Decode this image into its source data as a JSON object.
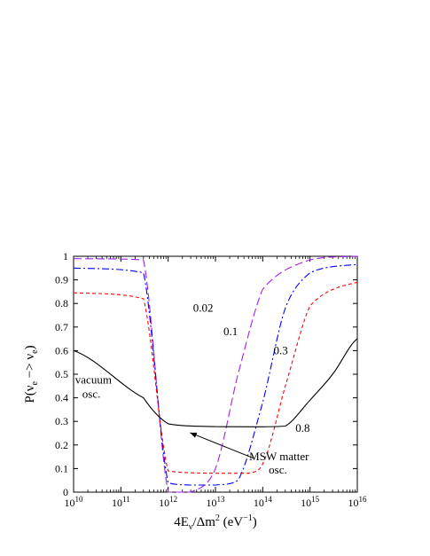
{
  "chart_data": {
    "type": "line",
    "title": "",
    "xlabel": {
      "prefix": "4E",
      "sub": "ν",
      "mid": "/Δm",
      "sup": "2",
      "unit_open": " (eV",
      "unit_sup": "−1",
      "unit_close": ")"
    },
    "ylabel": {
      "p": "P(ν",
      "sub1": "e",
      "arrow": " −> ν",
      "sub2": "e",
      "close": ")"
    },
    "x_scale": "log",
    "xlim": [
      10000000000.0,
      1e+16
    ],
    "ylim": [
      0,
      1
    ],
    "grid": false,
    "x_ticks": [
      {
        "base": "10",
        "exp": "10",
        "value": 10000000000.0
      },
      {
        "base": "10",
        "exp": "11",
        "value": 100000000000.0
      },
      {
        "base": "10",
        "exp": "12",
        "value": 1000000000000.0
      },
      {
        "base": "10",
        "exp": "13",
        "value": 10000000000000.0
      },
      {
        "base": "10",
        "exp": "14",
        "value": 100000000000000.0
      },
      {
        "base": "10",
        "exp": "15",
        "value": 1000000000000000.0
      },
      {
        "base": "10",
        "exp": "16",
        "value": 1e+16
      }
    ],
    "y_ticks": [
      "0",
      "0.1",
      "0.2",
      "0.3",
      "0.4",
      "0.5",
      "0.6",
      "0.7",
      "0.8",
      "0.9",
      "1"
    ],
    "series": [
      {
        "name": "0.02",
        "color": "#a020f0",
        "dash": "long-dash",
        "points": [
          [
            10000000000.0,
            0.99
          ],
          [
            300000000000.0,
            0.985
          ],
          [
            1000000000000.0,
            0.0
          ],
          [
            3000000000000.0,
            0.0
          ],
          [
            10000000000000.0,
            0.1
          ],
          [
            30000000000000.0,
            0.5
          ],
          [
            100000000000000.0,
            0.86
          ],
          [
            1000000000000000.0,
            0.985
          ],
          [
            1e+16,
            1.0
          ]
        ]
      },
      {
        "name": "0.1",
        "color": "#0000ff",
        "dash": "dash-dot",
        "points": [
          [
            10000000000.0,
            0.95
          ],
          [
            300000000000.0,
            0.93
          ],
          [
            1000000000000.0,
            0.04
          ],
          [
            3000000000000.0,
            0.03
          ],
          [
            10000000000000.0,
            0.03
          ],
          [
            30000000000000.0,
            0.05
          ],
          [
            100000000000000.0,
            0.38
          ],
          [
            300000000000000.0,
            0.78
          ],
          [
            1000000000000000.0,
            0.93
          ],
          [
            1e+16,
            0.965
          ]
        ]
      },
      {
        "name": "0.3",
        "color": "#ff0000",
        "dash": "short-dash",
        "points": [
          [
            10000000000.0,
            0.845
          ],
          [
            300000000000.0,
            0.82
          ],
          [
            1000000000000.0,
            0.09
          ],
          [
            10000000000000.0,
            0.08
          ],
          [
            50000000000000.0,
            0.08
          ],
          [
            100000000000000.0,
            0.12
          ],
          [
            300000000000000.0,
            0.45
          ],
          [
            1000000000000000.0,
            0.79
          ],
          [
            1e+16,
            0.89
          ]
        ]
      },
      {
        "name": "0.8",
        "color": "#000000",
        "dash": "solid",
        "points": [
          [
            10000000000.0,
            0.6
          ],
          [
            300000000000.0,
            0.4
          ],
          [
            1000000000000.0,
            0.29
          ],
          [
            10000000000000.0,
            0.278
          ],
          [
            100000000000000.0,
            0.277
          ],
          [
            300000000000000.0,
            0.28
          ],
          [
            1000000000000000.0,
            0.39
          ],
          [
            3000000000000000.0,
            0.5
          ],
          [
            1e+16,
            0.65
          ]
        ]
      }
    ],
    "series_labels": [
      {
        "text": "0.02",
        "x": 5500000000000.0,
        "y": 0.765
      },
      {
        "text": "0.1",
        "x": 21000000000000.0,
        "y": 0.665
      },
      {
        "text": "0.3",
        "x": 240000000000000.0,
        "y": 0.585
      },
      {
        "text": "0.8",
        "x": 700000000000000.0,
        "y": 0.255
      }
    ],
    "annotations": {
      "vacuum": {
        "line1": "vacuum",
        "line2": "osc.",
        "x": 10800000000.0,
        "y": 0.46
      },
      "msw": {
        "line1": "MSW matter",
        "line2": "osc.",
        "x": 52000000000000.0,
        "y": 0.135
      },
      "arrow": {
        "from_x": 62000000000000.0,
        "from_y": 0.145,
        "to_x": 2900000000000.0,
        "to_y": 0.252
      }
    }
  }
}
